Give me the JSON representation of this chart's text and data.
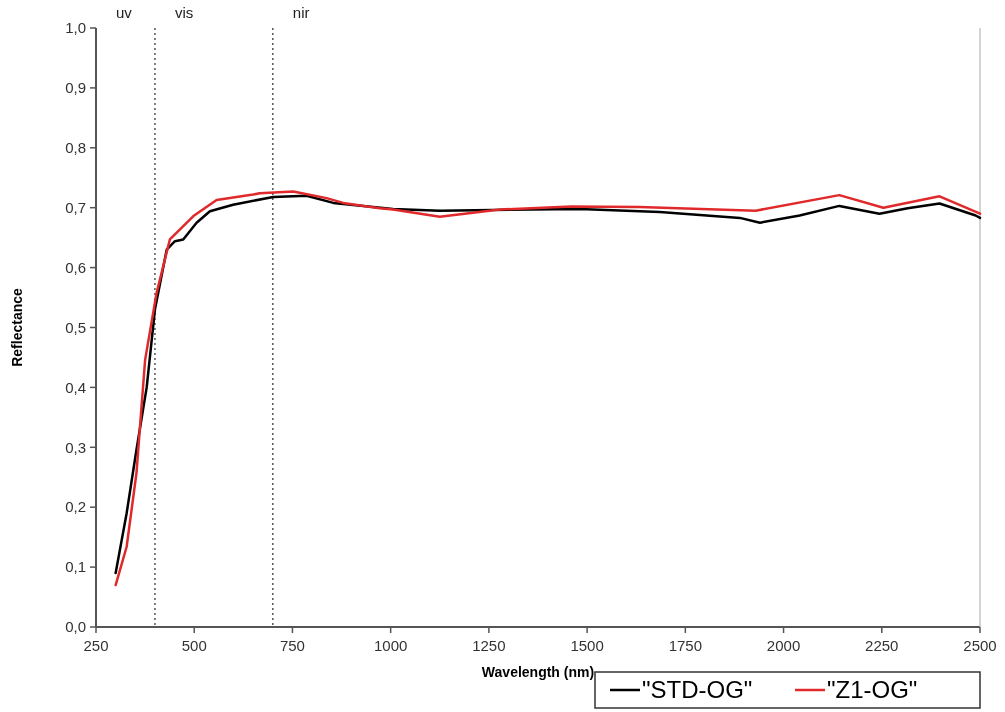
{
  "chart_data": {
    "type": "line",
    "xlabel": "Wavelength (nm)",
    "ylabel": "Reflectance",
    "xlim": [
      250,
      2500
    ],
    "xticks": [
      250,
      500,
      750,
      1000,
      1250,
      1500,
      1750,
      2000,
      2250,
      2500
    ],
    "ylim": [
      0,
      1
    ],
    "yticks": [
      {
        "value": 0,
        "label": "0,0"
      },
      {
        "value": 0.1,
        "label": "0,1"
      },
      {
        "value": 0.2,
        "label": "0,2"
      },
      {
        "value": 0.3,
        "label": "0,3"
      },
      {
        "value": 0.4,
        "label": "0,4"
      },
      {
        "value": 0.5,
        "label": "0,5"
      },
      {
        "value": 0.6,
        "label": "0,6"
      },
      {
        "value": 0.7,
        "label": "0,7"
      },
      {
        "value": 0.8,
        "label": "0,8"
      },
      {
        "value": 0.9,
        "label": "0,9"
      },
      {
        "value": 1,
        "label": "1,0"
      }
    ],
    "grid": false,
    "legend": "bottom right",
    "marker": "none",
    "line_style": "solid",
    "ref_lines": [
      {
        "axis": "x",
        "value": 400,
        "line_style": "dotted",
        "color": "#555555"
      },
      {
        "axis": "x",
        "value": 700,
        "line_style": "dotted",
        "color": "#555555"
      }
    ],
    "annotations": [
      "uv",
      "vis",
      "nir"
    ],
    "series": [
      {
        "name": "\"STD-OG\"",
        "color": "#000000",
        "x": [
          300,
          328,
          353,
          379,
          400,
          430,
          451,
          472,
          506,
          540,
          599,
          701,
          786,
          854,
          1006,
          1125,
          1481,
          1685,
          1889,
          1940,
          2041,
          2142,
          2244,
          2316,
          2397,
          2489,
          2500
        ],
        "values": [
          0.09,
          0.19,
          0.296,
          0.4,
          0.53,
          0.63,
          0.644,
          0.647,
          0.675,
          0.694,
          0.705,
          0.718,
          0.72,
          0.708,
          0.698,
          0.695,
          0.698,
          0.693,
          0.683,
          0.675,
          0.687,
          0.703,
          0.69,
          0.699,
          0.707,
          0.687,
          0.683
        ]
      },
      {
        "name": "\"Z1-OG\"",
        "color": "#e0292b",
        "x": [
          300,
          328,
          353,
          375,
          404,
          438,
          498,
          557,
          650,
          667,
          752,
          837,
          879,
          972,
          1006,
          1125,
          1278,
          1460,
          1633,
          1929,
          2142,
          2254,
          2397,
          2500
        ],
        "values": [
          0.07,
          0.134,
          0.257,
          0.446,
          0.557,
          0.647,
          0.686,
          0.713,
          0.722,
          0.724,
          0.727,
          0.716,
          0.708,
          0.699,
          0.697,
          0.685,
          0.697,
          0.702,
          0.701,
          0.695,
          0.721,
          0.7,
          0.719,
          0.69
        ]
      }
    ]
  }
}
